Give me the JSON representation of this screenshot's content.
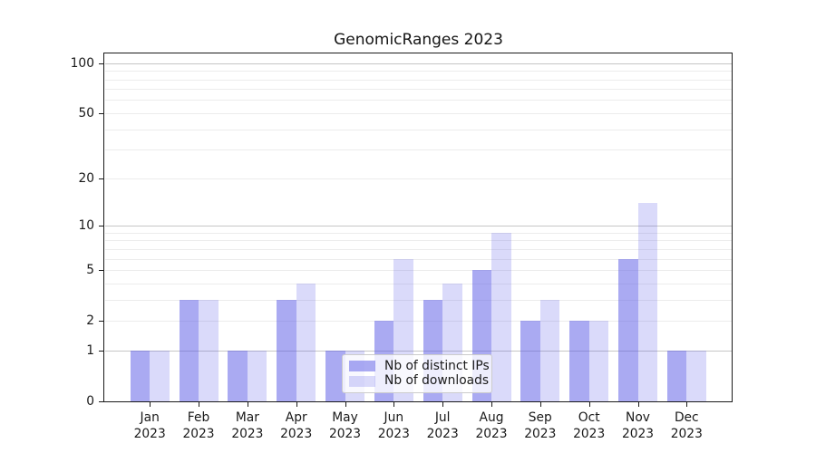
{
  "chart_data": {
    "type": "bar",
    "title": "GenomicRanges 2023",
    "categories": [
      "Jan",
      "Feb",
      "Mar",
      "Apr",
      "May",
      "Jun",
      "Jul",
      "Aug",
      "Sep",
      "Oct",
      "Nov",
      "Dec"
    ],
    "year_label": "2023",
    "series": [
      {
        "name": "Nb of distinct IPs",
        "values": [
          1,
          3,
          1,
          3,
          1,
          2,
          3,
          5,
          2,
          2,
          6,
          1
        ],
        "fill": "rgba(85,85,230,0.5)",
        "hex_on_white": "#aaaaf2"
      },
      {
        "name": "Nb of downloads",
        "values": [
          1,
          3,
          1,
          4,
          1,
          6,
          4,
          9,
          3,
          2,
          14,
          1
        ],
        "fill": "rgba(85,85,230,0.22)",
        "hex_on_white": "#d9d9f9"
      }
    ],
    "xlabel": "",
    "ylabel": "",
    "yscale": "log1p",
    "ylim": [
      0,
      117
    ],
    "yticks": [
      0,
      1,
      2,
      5,
      10,
      20,
      50,
      100
    ],
    "minor_grid_values": [
      2,
      3,
      4,
      5,
      6,
      7,
      8,
      9,
      20,
      30,
      40,
      50,
      60,
      70,
      80,
      90
    ],
    "major_grid_values": [
      1,
      10,
      100
    ],
    "grid": "horizontal",
    "legend_position": "inside-lower-center",
    "colors": {
      "axis": "#1a1a1a",
      "major_grid": "#c6c6c6",
      "minor_grid": "#ececec",
      "legend_border": "#cccccc",
      "bar_base": "#5555e6"
    }
  }
}
